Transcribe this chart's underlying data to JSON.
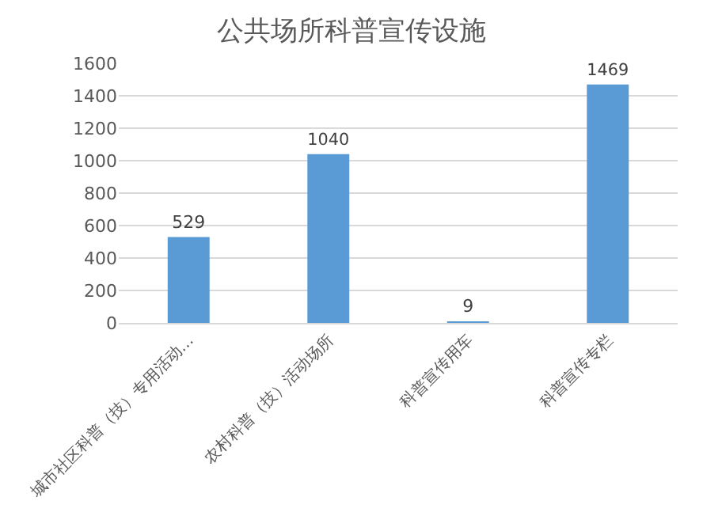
{
  "chart_data": {
    "type": "bar",
    "title": "公共场所科普宣传设施",
    "categories": [
      "城市社区科普（技）专用活动…",
      "农村科普（技）活动场所",
      "科普宣传用车",
      "科普宣传专栏"
    ],
    "values": [
      529,
      1040,
      9,
      1469
    ],
    "color": "#5b9bd5",
    "ylim": [
      0,
      1600
    ],
    "yticks": [
      0,
      200,
      400,
      600,
      800,
      1000,
      1200,
      1400,
      1600
    ],
    "grid": "y",
    "data_labels": true
  }
}
